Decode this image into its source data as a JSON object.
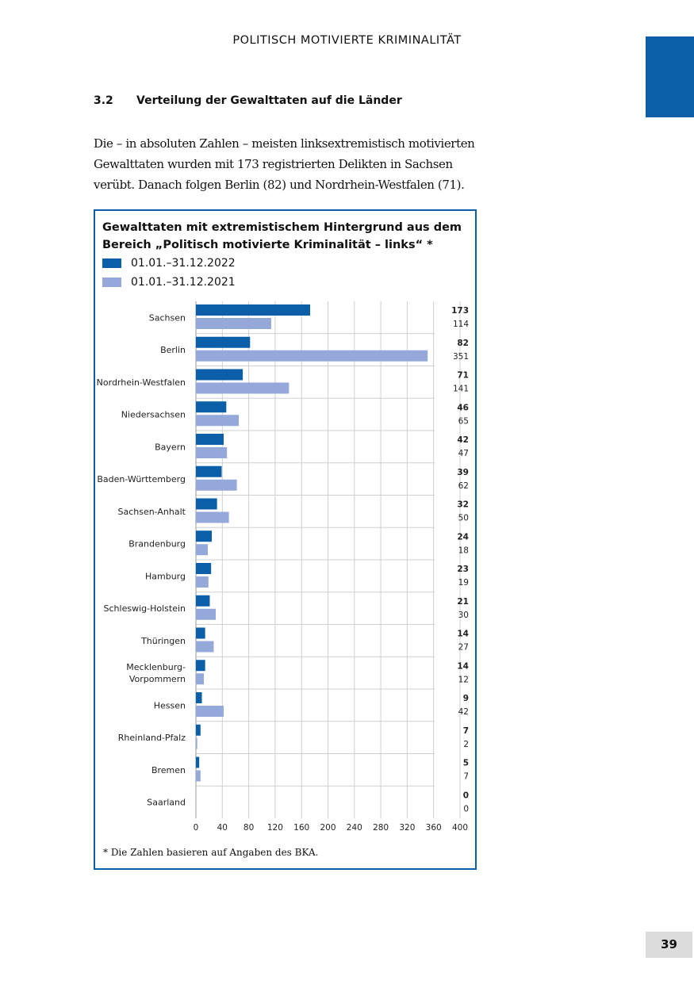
{
  "header": {
    "running_title": "POLITISCH MOTIVIERTE KRIMINALITÄT",
    "page_number": "39",
    "accent_color": "#0b5ea8"
  },
  "section": {
    "number": "3.2",
    "title": "Verteilung der Gewalttaten auf die Länder"
  },
  "body_text": "Die – in absoluten Zahlen – meisten linksextremistisch motivierten Gewalttaten wurden mit 173 registrierten Delikten in Sachsen verübt. Danach folgen Berlin (82) und Nordrhein-Westfalen (71).",
  "chart_data": {
    "type": "bar",
    "orientation": "horizontal",
    "title": "Gewalttaten mit extremistischem Hintergrund aus dem Bereich „Politisch motivierte Kriminalität – links“ *",
    "title_lines": [
      "Gewalttaten mit extremistischem Hintergrund aus dem",
      "Bereich „Politisch motivierte Kriminalität – links“ *"
    ],
    "categories": [
      "Sachsen",
      "Berlin",
      "Nordrhein-Westfalen",
      "Niedersachsen",
      "Bayern",
      "Baden-Württemberg",
      "Sachsen-Anhalt",
      "Brandenburg",
      "Hamburg",
      "Schleswig-Holstein",
      "Thüringen",
      "Mecklenburg-\nVorpommern",
      "Hessen",
      "Rheinland-Pfalz",
      "Bremen",
      "Saarland"
    ],
    "series": [
      {
        "name": "01.01.–31.12.2022",
        "color": "#0b5ea8",
        "values": [
          173,
          82,
          71,
          46,
          42,
          39,
          32,
          24,
          23,
          21,
          14,
          14,
          9,
          7,
          5,
          0
        ]
      },
      {
        "name": "01.01.–31.12.2021",
        "color": "#94a9da",
        "values": [
          114,
          351,
          141,
          65,
          47,
          62,
          50,
          18,
          19,
          30,
          27,
          12,
          42,
          2,
          7,
          0
        ]
      }
    ],
    "xlim": [
      0,
      400
    ],
    "xticks": [
      0,
      40,
      80,
      120,
      160,
      200,
      240,
      280,
      320,
      360,
      400
    ],
    "grid": true,
    "legend_placement": "top-left",
    "footnote": "* Die Zahlen basieren auf Angaben des BKA."
  }
}
